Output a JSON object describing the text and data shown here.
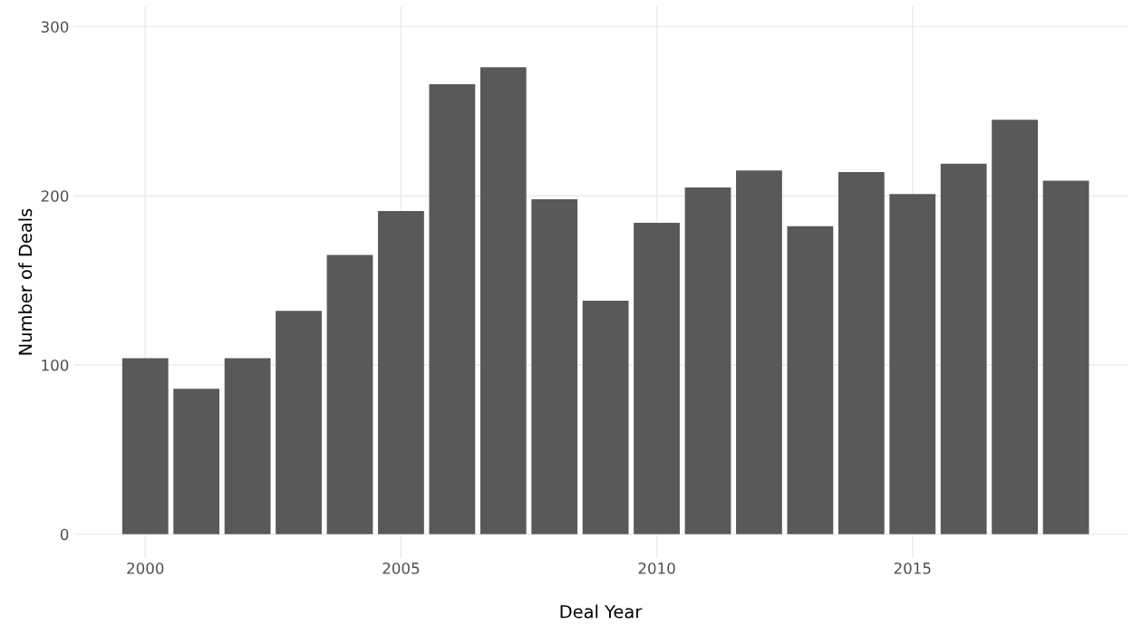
{
  "chart_data": {
    "type": "bar",
    "xlabel": "Deal Year",
    "ylabel": "Number of Deals",
    "x": [
      2000,
      2001,
      2002,
      2003,
      2004,
      2005,
      2006,
      2007,
      2008,
      2009,
      2010,
      2011,
      2012,
      2013,
      2014,
      2015,
      2016,
      2017,
      2018
    ],
    "values": [
      104,
      86,
      104,
      132,
      165,
      191,
      266,
      276,
      198,
      138,
      184,
      205,
      215,
      182,
      214,
      201,
      219,
      245,
      209
    ],
    "color": "#595959",
    "xlim": [
      1998.6,
      2019.2
    ],
    "xticks": [
      2000,
      2005,
      2010,
      2015
    ],
    "ylim": [
      -14,
      312
    ],
    "yticks": [
      0,
      100,
      200,
      300
    ],
    "grid": true
  }
}
